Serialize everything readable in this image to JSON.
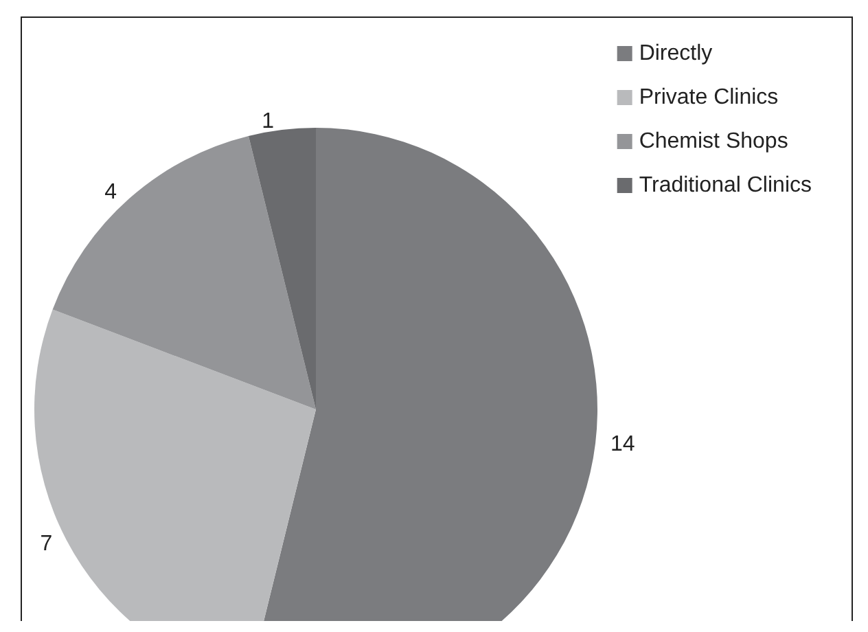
{
  "chart_data": {
    "type": "pie",
    "categories": [
      "Directly",
      "Private Clinics",
      "Chemist Shops",
      "Traditional Clinics"
    ],
    "values": [
      14,
      7,
      4,
      1
    ],
    "colors": [
      "#7b7c7f",
      "#b9babc",
      "#949598",
      "#6a6b6e"
    ],
    "data_labels": true,
    "legend": "top right"
  }
}
